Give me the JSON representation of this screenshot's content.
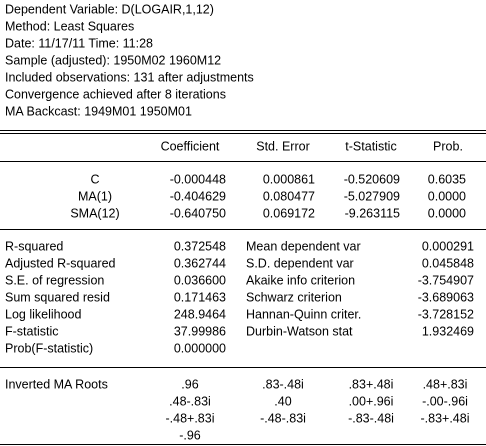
{
  "header": {
    "lines": [
      "Dependent Variable: D(LOGAIR,1,12)",
      "Method: Least Squares",
      "Date: 11/17/11   Time: 11:28",
      "Sample (adjusted): 1950M02 1960M12",
      "Included observations: 131 after adjustments",
      "Convergence achieved after 8 iterations",
      "MA Backcast: 1949M01 1950M01"
    ]
  },
  "table": {
    "columns": [
      "Coefficient",
      "Std. Error",
      "t-Statistic",
      "Prob."
    ],
    "rows": [
      {
        "variable": "C",
        "values": [
          "-0.000448",
          "0.000861",
          "-0.520609",
          "0.6035"
        ]
      },
      {
        "variable": "MA(1)",
        "values": [
          "-0.404629",
          "0.080477",
          "-5.027909",
          "0.0000"
        ]
      },
      {
        "variable": "SMA(12)",
        "values": [
          "-0.640750",
          "0.069172",
          "-9.263115",
          "0.0000"
        ]
      }
    ]
  },
  "stats": {
    "left": [
      [
        "R-squared",
        "0.372548"
      ],
      [
        "Adjusted R-squared",
        "0.362744"
      ],
      [
        "S.E. of regression",
        "0.036600"
      ],
      [
        "Sum squared resid",
        "0.171463"
      ],
      [
        "Log likelihood",
        "248.9464"
      ],
      [
        "F-statistic",
        "37.99986"
      ],
      [
        "Prob(F-statistic)",
        "0.000000"
      ]
    ],
    "right": [
      [
        "Mean dependent var",
        "0.000291"
      ],
      [
        "S.D. dependent var",
        "0.045848"
      ],
      [
        "Akaike info criterion",
        "-3.754907"
      ],
      [
        "Schwarz criterion",
        "-3.689063"
      ],
      [
        "Hannan-Quinn criter.",
        "-3.728152"
      ],
      [
        "Durbin-Watson stat",
        "1.932469"
      ]
    ]
  },
  "roots": {
    "label": "Inverted MA Roots",
    "rows": [
      [
        ".96",
        ".83-.48i",
        ".83+.48i",
        ".48+.83i"
      ],
      [
        ".48-.83i",
        ".40",
        ".00+.96i",
        "-.00-.96i"
      ],
      [
        "-.48+.83i",
        "-.48-.83i",
        "-.83-.48i",
        "-.83+.48i"
      ],
      [
        "-.96"
      ]
    ]
  }
}
